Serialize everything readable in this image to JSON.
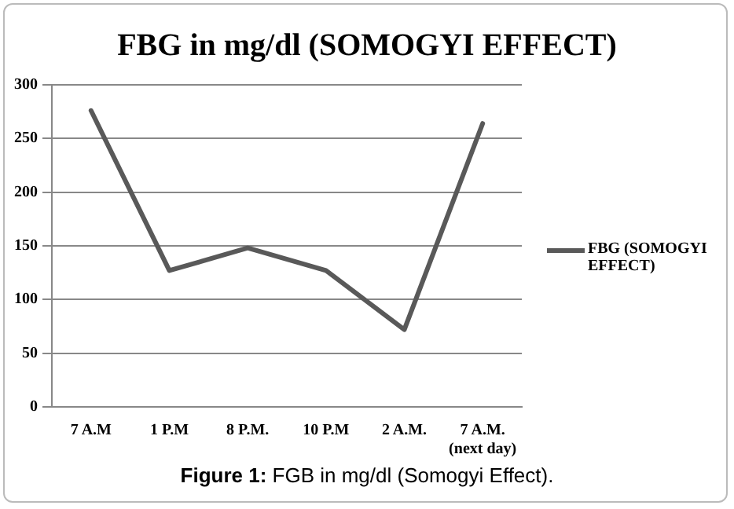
{
  "chart_data": {
    "type": "line",
    "title": "FBG in mg/dl (SOMOGYI EFFECT)",
    "categories": [
      "7 A.M",
      "1 P.M",
      "8 P.M.",
      "10 P.M",
      "2 A.M.",
      "7 A.M. (next day)"
    ],
    "series": [
      {
        "name": "FBG (SOMOGYI EFFECT)",
        "color": "#595959",
        "values": [
          276,
          127,
          148,
          127,
          72,
          264
        ]
      }
    ],
    "ylim": [
      0,
      300
    ],
    "yticks": [
      0,
      50,
      100,
      150,
      200,
      250,
      300
    ],
    "grid": "y",
    "legend": "right",
    "marker": "none",
    "annotations": [
      "Figure 1: FGB in mg/dl (Somogyi Effect)."
    ]
  }
}
